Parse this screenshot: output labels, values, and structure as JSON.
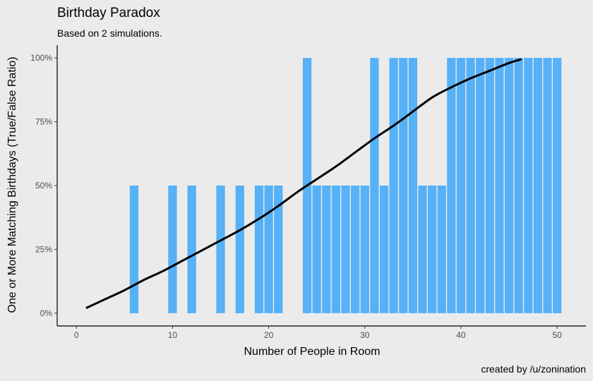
{
  "chart_data": {
    "type": "bar",
    "title": "Birthday Paradox",
    "subtitle": "Based on 2 simulations.",
    "caption": "created by /u/zonination",
    "xlabel": "Number of People in Room",
    "ylabel": "One or More Matching Birthdays (True/False Ratio)",
    "xlim": [
      -2,
      53
    ],
    "ylim": [
      -0.05,
      1.05
    ],
    "x_ticks": [
      0,
      10,
      20,
      30,
      40,
      50
    ],
    "x_tick_labels": [
      "0",
      "10",
      "20",
      "30",
      "40",
      "50"
    ],
    "y_ticks": [
      0,
      0.25,
      0.5,
      0.75,
      1.0
    ],
    "y_tick_labels": [
      "0%",
      "25%",
      "50%",
      "75%",
      "100%"
    ],
    "bar_color": "#56b1f7",
    "x": [
      6,
      10,
      12,
      15,
      17,
      19,
      20,
      21,
      24,
      25,
      26,
      27,
      28,
      29,
      30,
      31,
      32,
      33,
      34,
      35,
      36,
      37,
      38,
      39,
      40,
      41,
      42,
      43,
      44,
      45,
      46,
      47,
      48,
      49,
      50
    ],
    "values": [
      0.5,
      0.5,
      0.5,
      0.5,
      0.5,
      0.5,
      0.5,
      0.5,
      1.0,
      0.5,
      0.5,
      0.5,
      0.5,
      0.5,
      0.5,
      1.0,
      0.5,
      1.0,
      1.0,
      1.0,
      0.5,
      0.5,
      0.5,
      1.0,
      1.0,
      1.0,
      1.0,
      1.0,
      1.0,
      1.0,
      1.0,
      1.0,
      1.0,
      1.0,
      1.0
    ],
    "smooth_line": {
      "color": "#000000",
      "x": [
        1,
        3,
        5,
        7,
        9,
        11,
        13,
        15,
        17,
        19,
        21,
        23,
        25,
        27,
        29,
        31,
        33,
        35,
        37,
        39,
        41,
        43,
        45,
        46.3
      ],
      "y": [
        0.02,
        0.055,
        0.09,
        0.13,
        0.165,
        0.205,
        0.245,
        0.285,
        0.325,
        0.37,
        0.42,
        0.475,
        0.525,
        0.575,
        0.63,
        0.685,
        0.735,
        0.79,
        0.845,
        0.885,
        0.92,
        0.95,
        0.98,
        0.995
      ]
    }
  }
}
